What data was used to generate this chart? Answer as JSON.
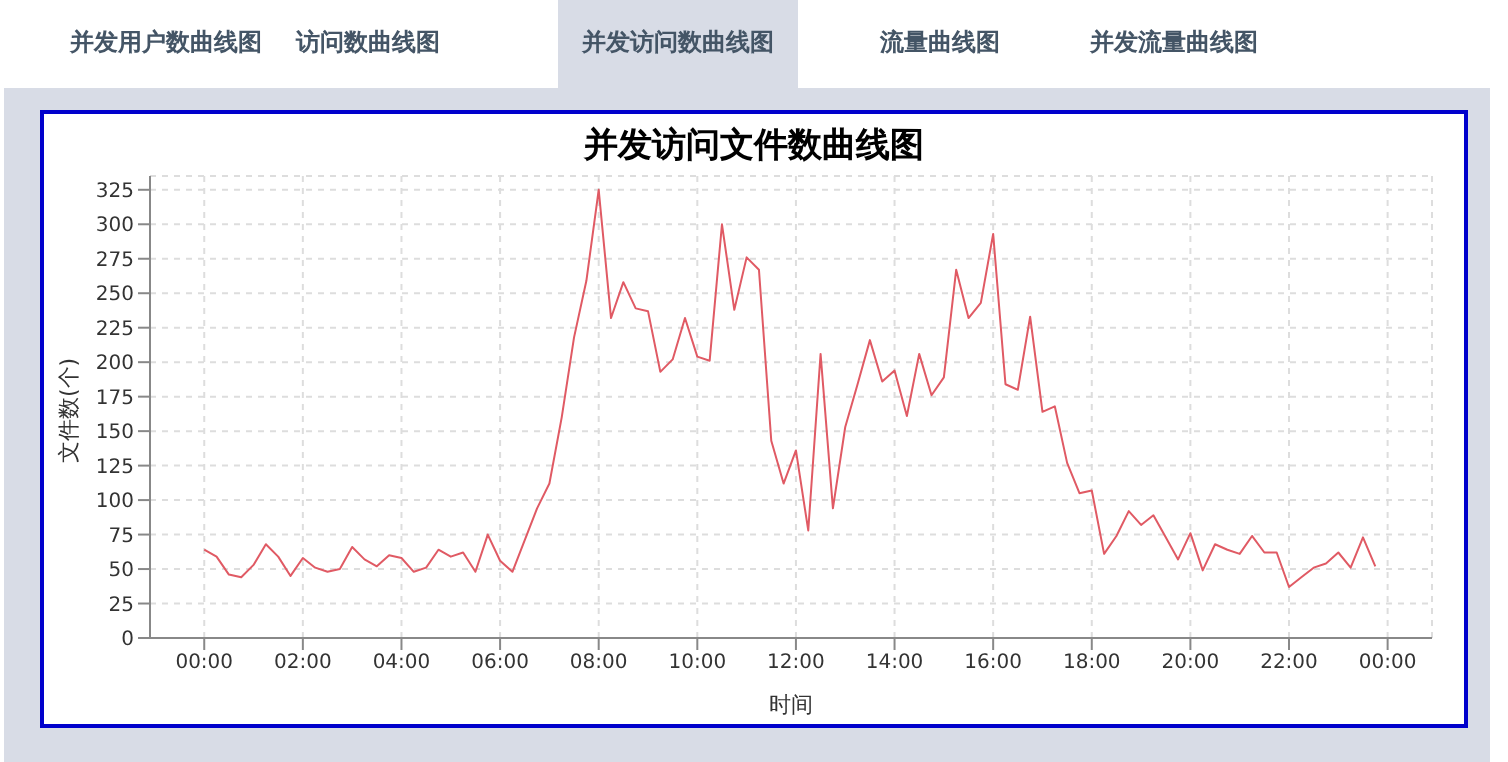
{
  "chart_data": {
    "type": "line",
    "title": "并发访问文件数曲线图",
    "xlabel": "时间",
    "ylabel": "文件数(个)",
    "annotations": [
      "并发用户数曲线图",
      "访问数曲线图",
      "并发访问数曲线图",
      "流量曲线图",
      "并发流量曲线图"
    ],
    "x": [
      0,
      0.25,
      0.5,
      0.75,
      1,
      1.25,
      1.5,
      1.75,
      2,
      2.25,
      2.5,
      2.75,
      3,
      3.25,
      3.5,
      3.75,
      4,
      4.25,
      4.5,
      4.75,
      5,
      5.25,
      5.5,
      5.75,
      6,
      6.25,
      6.5,
      6.75,
      7,
      7.25,
      7.5,
      7.75,
      8,
      8.25,
      8.5,
      8.75,
      9,
      9.25,
      9.5,
      9.75,
      10,
      10.25,
      10.5,
      10.75,
      11,
      11.25,
      11.5,
      11.75,
      12,
      12.25,
      12.5,
      12.75,
      13,
      13.25,
      13.5,
      13.75,
      14,
      14.25,
      14.5,
      14.75,
      15,
      15.25,
      15.5,
      15.75,
      16,
      16.25,
      16.5,
      16.75,
      17,
      17.25,
      17.5,
      17.75,
      18,
      18.25,
      18.5,
      18.75,
      19,
      19.25,
      19.5,
      19.75,
      20,
      20.25,
      20.5,
      20.75,
      21,
      21.25,
      21.5,
      21.75,
      22,
      22.25,
      22.5,
      22.75,
      23,
      23.25,
      23.5,
      23.75
    ],
    "values": [
      64,
      59,
      46,
      44,
      53,
      68,
      59,
      45,
      58,
      51,
      48,
      50,
      66,
      57,
      52,
      60,
      58,
      48,
      51,
      64,
      59,
      62,
      48,
      75,
      56,
      48,
      71,
      94,
      112,
      160,
      218,
      259,
      325,
      232,
      258,
      239,
      237,
      193,
      202,
      232,
      204,
      201,
      300,
      238,
      276,
      267,
      143,
      112,
      136,
      78,
      206,
      94,
      153,
      184,
      216,
      186,
      194,
      161,
      206,
      176,
      189,
      267,
      232,
      243,
      293,
      184,
      180,
      233,
      164,
      168,
      127,
      105,
      107,
      61,
      74,
      92,
      82,
      89,
      73,
      57,
      76,
      49,
      68,
      64,
      61,
      74,
      62,
      62,
      37,
      44,
      51,
      54,
      62,
      51,
      73,
      52
    ],
    "color": "#e05a64",
    "xlim": [
      -1.1,
      24.9
    ],
    "ylim": [
      0,
      335
    ],
    "xticks": [
      {
        "value": 0,
        "label": "00:00"
      },
      {
        "value": 2,
        "label": "02:00"
      },
      {
        "value": 4,
        "label": "04:00"
      },
      {
        "value": 6,
        "label": "06:00"
      },
      {
        "value": 8,
        "label": "08:00"
      },
      {
        "value": 10,
        "label": "10:00"
      },
      {
        "value": 12,
        "label": "12:00"
      },
      {
        "value": 14,
        "label": "14:00"
      },
      {
        "value": 16,
        "label": "16:00"
      },
      {
        "value": 18,
        "label": "18:00"
      },
      {
        "value": 20,
        "label": "20:00"
      },
      {
        "value": 22,
        "label": "22:00"
      },
      {
        "value": 24,
        "label": "00:00"
      }
    ],
    "yticks": [
      0,
      25,
      50,
      75,
      100,
      125,
      150,
      175,
      200,
      225,
      250,
      275,
      300,
      325
    ],
    "grid": true
  }
}
